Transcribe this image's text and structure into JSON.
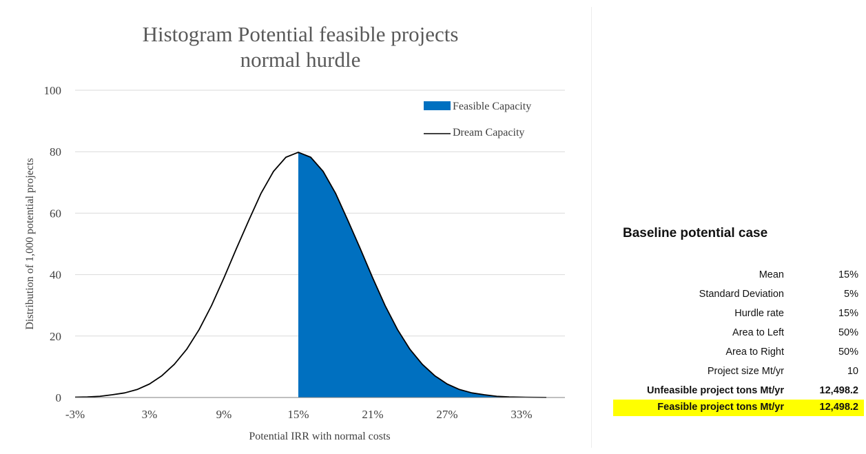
{
  "chart_data": {
    "type": "area",
    "title": [
      "Histogram Potential feasible projects",
      "normal hurdle"
    ],
    "xlabel": "Potential IRR with normal costs",
    "ylabel": "Distribution of 1,000 potential projects",
    "x_ticks": [
      "-3%",
      "3%",
      "9%",
      "15%",
      "21%",
      "27%",
      "33%"
    ],
    "x_tick_values": [
      -3,
      3,
      9,
      15,
      21,
      27,
      33
    ],
    "y_ticks": [
      "0",
      "20",
      "40",
      "60",
      "80",
      "100"
    ],
    "y_tick_values": [
      0,
      20,
      40,
      60,
      80,
      100
    ],
    "xlim": [
      -3,
      36.5
    ],
    "ylim": [
      0,
      100
    ],
    "grid": true,
    "legend_position": "top-right",
    "series": [
      {
        "name": "Feasible Capacity",
        "style": "filled-area",
        "color": "#0070c0",
        "x": [
          15,
          16,
          17,
          18,
          19,
          20,
          21,
          22,
          23,
          24,
          25,
          26,
          27,
          28,
          29,
          30,
          31,
          32,
          33,
          34,
          35
        ],
        "y": [
          79.8,
          78.2,
          73.6,
          66.5,
          57.6,
          48.4,
          38.9,
          29.9,
          22.1,
          15.7,
          10.8,
          7.1,
          4.4,
          2.6,
          1.5,
          0.9,
          0.4,
          0.2,
          0.1,
          0.05,
          0.02
        ]
      },
      {
        "name": "Dream Capacity",
        "style": "line",
        "color": "#000000",
        "x": [
          -3,
          -2,
          -1,
          0,
          1,
          2,
          3,
          4,
          5,
          6,
          7,
          8,
          9,
          10,
          11,
          12,
          13,
          14,
          15,
          16,
          17,
          18,
          19,
          20,
          21,
          22,
          23,
          24,
          25,
          26,
          27,
          28,
          29,
          30,
          31,
          32,
          33,
          34,
          35
        ],
        "y": [
          0.1,
          0.2,
          0.4,
          0.9,
          1.5,
          2.6,
          4.4,
          7.1,
          10.8,
          15.7,
          22.1,
          29.9,
          38.9,
          48.4,
          57.6,
          66.5,
          73.6,
          78.2,
          79.8,
          78.2,
          73.6,
          66.5,
          57.6,
          48.4,
          38.9,
          29.9,
          22.1,
          15.7,
          10.8,
          7.1,
          4.4,
          2.6,
          1.5,
          0.9,
          0.4,
          0.2,
          0.1,
          0.05,
          0.02
        ]
      }
    ]
  },
  "table": {
    "title": "Baseline potential case",
    "rows": [
      {
        "label": "Mean",
        "value": "15%"
      },
      {
        "label": "Standard Deviation",
        "value": "5%"
      },
      {
        "label": "Hurdle rate",
        "value": "15%"
      },
      {
        "label": "Area to Left",
        "value": "50%"
      },
      {
        "label": "Area to Right",
        "value": "50%"
      },
      {
        "label": "Project size Mt/yr",
        "value": "10"
      },
      {
        "label": "Unfeasible project tons Mt/yr",
        "value": "12,498.2"
      },
      {
        "label": "Feasible project tons Mt/yr",
        "value": "12,498.2"
      }
    ],
    "highlight_color": "#ffff00"
  }
}
